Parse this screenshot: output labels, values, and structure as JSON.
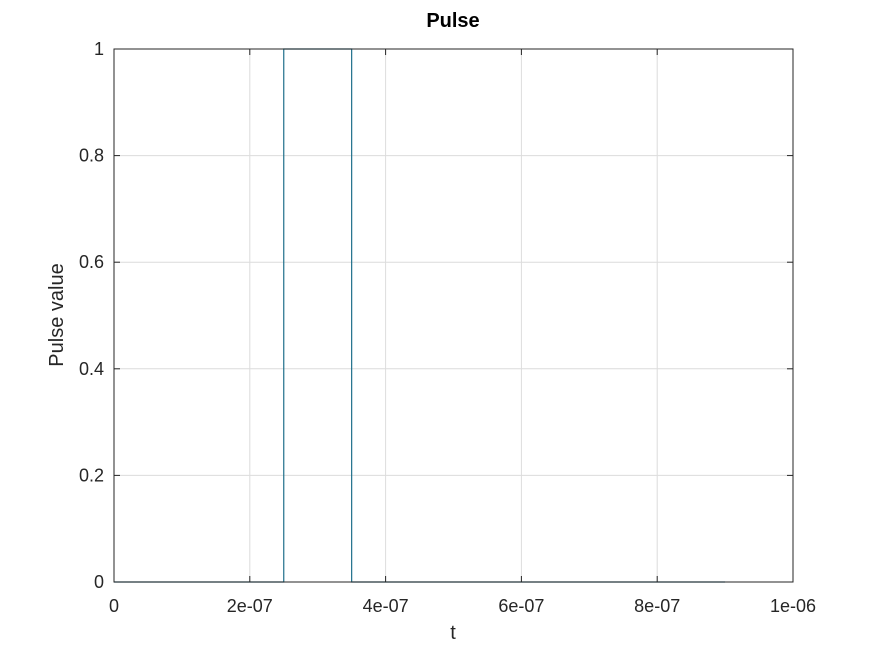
{
  "chart_data": {
    "type": "line",
    "title": "Pulse",
    "xlabel": "t",
    "ylabel": "Pulse value",
    "xlim": [
      0,
      1e-06
    ],
    "ylim": [
      0,
      1
    ],
    "x_ticks": [
      0,
      2e-07,
      4e-07,
      6e-07,
      8e-07,
      1e-06
    ],
    "x_tick_labels": [
      "0",
      "2e-07",
      "4e-07",
      "6e-07",
      "8e-07",
      "1e-06"
    ],
    "y_ticks": [
      0,
      0.2,
      0.4,
      0.6,
      0.8,
      1
    ],
    "y_tick_labels": [
      "0",
      "0.2",
      "0.4",
      "0.6",
      "0.8",
      "1"
    ],
    "grid": true,
    "series": [
      {
        "color": "#1f6f8b",
        "x": [
          0,
          2.5e-07,
          2.5e-07,
          3.5e-07,
          3.5e-07,
          9e-07
        ],
        "y": [
          0,
          0,
          1,
          1,
          0,
          0
        ]
      }
    ]
  }
}
